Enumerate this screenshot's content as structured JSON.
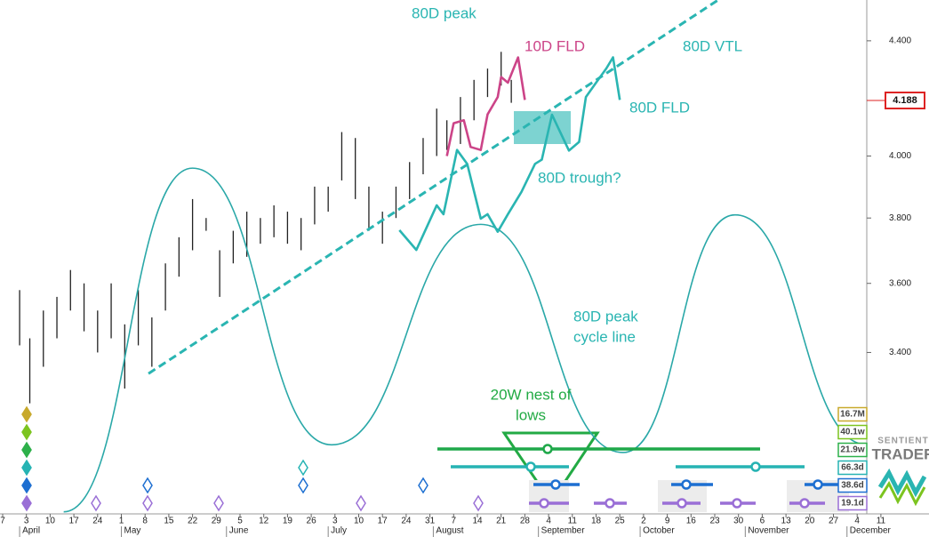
{
  "chart_data": {
    "type": "ohlc",
    "log_scale": true,
    "ylim": [
      2.975,
      4.551
    ],
    "yticks": [
      {
        "value": 3.4,
        "label": "3.400"
      },
      {
        "value": 3.6,
        "label": "3.600"
      },
      {
        "value": 3.8,
        "label": "3.800"
      },
      {
        "value": 4.0,
        "label": "4.000"
      },
      {
        "value": 4.4,
        "label": "4.400"
      }
    ],
    "last_price": {
      "value": 4.188,
      "label": "4.188"
    },
    "months": [
      "April",
      "May",
      "June",
      "July",
      "August",
      "September",
      "October",
      "November",
      "December"
    ],
    "xticks": [
      "7",
      "3",
      "10",
      "17",
      "24",
      "1",
      "8",
      "15",
      "22",
      "29",
      "5",
      "12",
      "19",
      "26",
      "3",
      "10",
      "17",
      "24",
      "31",
      "7",
      "14",
      "21",
      "28",
      "4",
      "11",
      "18",
      "25",
      "2",
      "9",
      "16",
      "23",
      "30",
      "6",
      "13",
      "20",
      "27",
      "4",
      "11"
    ],
    "bars": {
      "color": "#222222",
      "x": [
        "April 1",
        "April 4",
        "April 8",
        "April 12",
        "April 16",
        "April 20",
        "April 24",
        "April 28",
        "May 2",
        "May 6",
        "May 10",
        "May 14",
        "May 18",
        "May 22",
        "May 26",
        "May 30",
        "June 3",
        "June 7",
        "June 11",
        "June 15",
        "June 19",
        "June 23",
        "June 27",
        "July 1",
        "July 5",
        "July 9",
        "July 13",
        "July 17",
        "July 21",
        "July 25",
        "July 29",
        "August 2",
        "August 5",
        "August 9",
        "August 13",
        "August 17",
        "August 21",
        "August 24"
      ],
      "low": [
        3.42,
        3.26,
        3.36,
        3.44,
        3.52,
        3.46,
        3.4,
        3.44,
        3.3,
        3.42,
        3.36,
        3.52,
        3.62,
        3.7,
        3.76,
        3.56,
        3.66,
        3.68,
        3.72,
        3.74,
        3.72,
        3.7,
        3.78,
        3.82,
        3.92,
        3.86,
        3.76,
        3.72,
        3.8,
        3.86,
        3.94,
        4.0,
        4.02,
        4.04,
        4.12,
        4.2,
        4.24,
        4.18
      ],
      "high": [
        3.58,
        3.44,
        3.52,
        3.56,
        3.64,
        3.6,
        3.52,
        3.6,
        3.48,
        3.58,
        3.5,
        3.66,
        3.74,
        3.86,
        3.8,
        3.7,
        3.76,
        3.82,
        3.8,
        3.84,
        3.82,
        3.8,
        3.9,
        3.9,
        4.08,
        4.06,
        3.9,
        3.82,
        3.9,
        3.98,
        4.06,
        4.16,
        4.12,
        4.2,
        4.26,
        4.3,
        4.36,
        4.26
      ]
    },
    "lines": [
      {
        "color": "#5a6fd0",
        "smooth": true,
        "x": [
          "April 14",
          "May 22",
          "July 2",
          "August 15",
          "September 26",
          "October 29",
          "December 7"
        ],
        "values": [
          2.98,
          3.96,
          3.15,
          3.78,
          3.13,
          3.81,
          3.15
        ]
      },
      {
        "color": "#2ab5b2",
        "dash": true,
        "x": [
          "May 9",
          "October 24"
        ],
        "values": [
          3.341,
          4.551
        ]
      },
      {
        "color": "#2ab5b2",
        "x": [
          "July 22",
          "July 27",
          "August 2",
          "August 4",
          "August 8",
          "August 11",
          "August 15",
          "August 17",
          "August 20",
          "August 23",
          "August 27",
          "August 31",
          "September 2",
          "September 5",
          "September 7",
          "September 10",
          "September 13",
          "September 15",
          "September 18",
          "September 21",
          "September 23",
          "September 25"
        ],
        "values": [
          3.762,
          3.701,
          3.84,
          3.812,
          4.02,
          3.974,
          3.798,
          3.812,
          3.757,
          3.812,
          3.883,
          3.974,
          3.988,
          4.139,
          4.09,
          4.018,
          4.047,
          4.2,
          4.25,
          4.3,
          4.34,
          4.19
        ]
      },
      {
        "color": "#cc4488",
        "x": [
          "August 5",
          "August 7",
          "August 10",
          "August 12",
          "August 15",
          "August 17",
          "August 20",
          "August 21",
          "August 23",
          "August 26",
          "August 28"
        ],
        "values": [
          4.0,
          4.11,
          4.12,
          4.03,
          4.02,
          4.14,
          4.2,
          4.27,
          4.25,
          4.34,
          4.19
        ]
      }
    ],
    "annotations": [
      {
        "color": "#2ab5b2",
        "lines": [
          "80D peak"
        ]
      },
      {
        "color": "#cc4488",
        "lines": [
          "10D FLD"
        ]
      },
      {
        "color": "#2ab5b2",
        "lines": [
          "80D VTL"
        ]
      },
      {
        "color": "#2ab5b2",
        "lines": [
          "80D FLD"
        ]
      },
      {
        "color": "#2ab5b2",
        "lines": [
          "80D trough?"
        ]
      },
      {
        "color": "#2ab5b2",
        "lines": [
          "80D peak",
          "cycle line"
        ]
      },
      {
        "color": "#22aa44",
        "lines": [
          "20W nest of",
          "lows"
        ]
      }
    ],
    "cycles": [
      {
        "label": "16.7M",
        "color": "#c8a92c"
      },
      {
        "label": "40.1w",
        "color": "#7cc41f"
      },
      {
        "label": "21.9w",
        "color": "#2db04a"
      },
      {
        "label": "66.3d",
        "color": "#26b3b3"
      },
      {
        "label": "38.6d",
        "color": "#1d6fd1"
      },
      {
        "label": "19.1d",
        "color": "#9a6fd6"
      }
    ]
  },
  "logo": [
    "SENTIENT",
    "TRADER"
  ]
}
